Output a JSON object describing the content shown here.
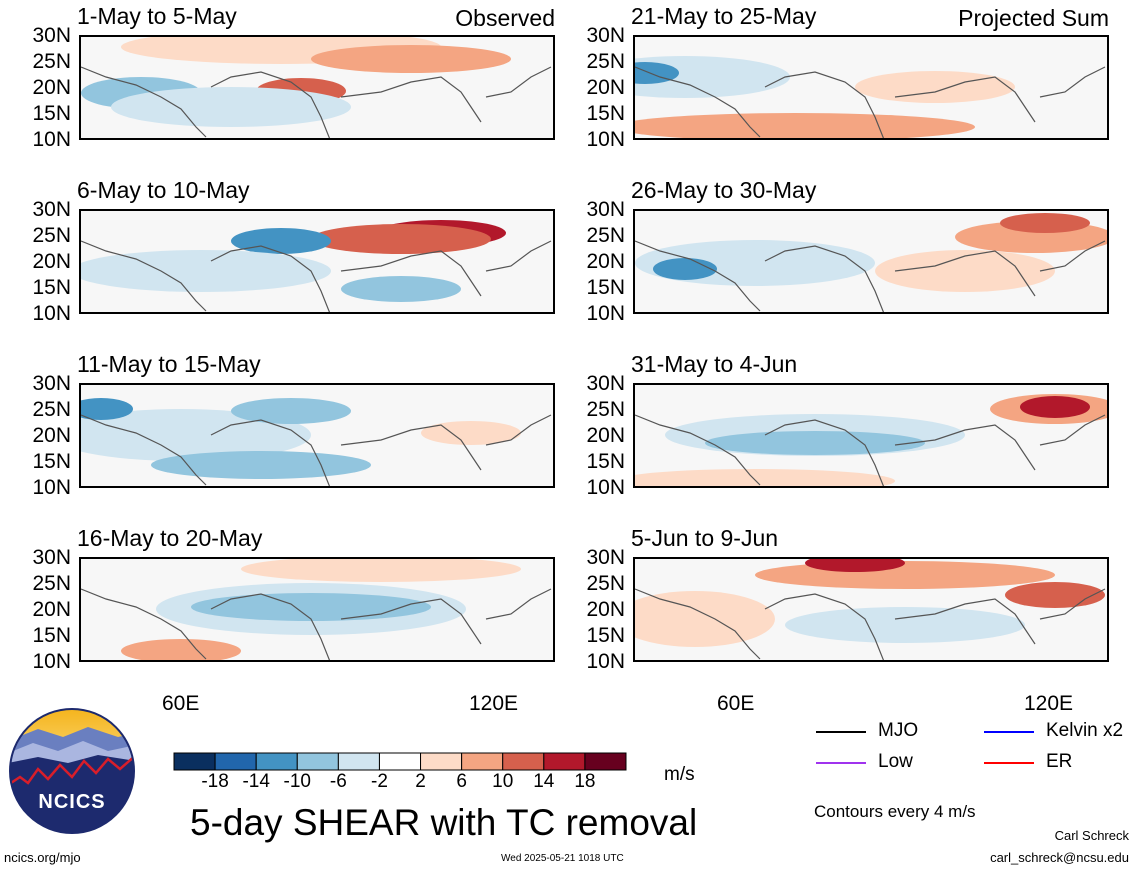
{
  "panels": [
    {
      "title": "1-May to 5-May",
      "tag": "Observed"
    },
    {
      "title": "21-May to 25-May",
      "tag": "Projected Sum"
    },
    {
      "title": "6-May to 10-May",
      "tag": ""
    },
    {
      "title": "26-May to 30-May",
      "tag": ""
    },
    {
      "title": "11-May to 15-May",
      "tag": ""
    },
    {
      "title": "31-May to 4-Jun",
      "tag": ""
    },
    {
      "title": "16-May to 20-May",
      "tag": ""
    },
    {
      "title": "5-Jun to 9-Jun",
      "tag": ""
    }
  ],
  "lat_labels": [
    "30N",
    "25N",
    "20N",
    "15N",
    "10N"
  ],
  "lon_labels": [
    "60E",
    "120E"
  ],
  "colorbar": {
    "colors": [
      "#0a2f5f",
      "#2166ac",
      "#4393c3",
      "#92c5de",
      "#d1e5f0",
      "#ffffff",
      "#fddbc7",
      "#f4a582",
      "#d6604d",
      "#b2182b",
      "#67001f"
    ],
    "labels": [
      "-18",
      "-14",
      "-10",
      "-6",
      "-2",
      "2",
      "6",
      "10",
      "14",
      "18"
    ],
    "unit": "m/s"
  },
  "title": "5-day SHEAR with TC removal",
  "legend": {
    "items": [
      {
        "label": "MJO",
        "color": "#000000"
      },
      {
        "label": "Kelvin x2",
        "color": "#0000ff"
      },
      {
        "label": "Low",
        "color": "#a033ee"
      },
      {
        "label": "ER",
        "color": "#ff0000"
      }
    ],
    "contours": "Contours every 4 m/s"
  },
  "logo": {
    "text": "NCICS"
  },
  "footer": {
    "url": "ncics.org/mjo",
    "timestamp": "Wed 2025-05-21 1018 UTC",
    "author": "Carl Schreck",
    "email": "carl_schreck@ncsu.edu"
  }
}
